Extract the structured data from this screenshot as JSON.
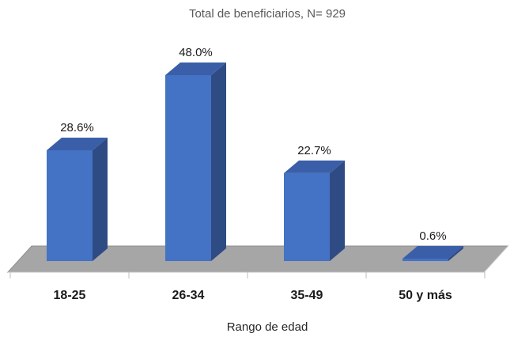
{
  "chart_data": {
    "type": "bar",
    "title": "Total de beneficiarios, N= 929",
    "xlabel": "Rango de edad",
    "ylabel": "",
    "categories": [
      "18-25",
      "26-34",
      "35-49",
      "50 y más"
    ],
    "values": [
      28.6,
      48.0,
      22.7,
      0.6
    ],
    "value_labels": [
      "28.6%",
      "48.0%",
      "22.7%",
      "0.6%"
    ],
    "ylim": [
      0,
      50
    ],
    "grid": false,
    "legend": "none",
    "style": "3d-column"
  },
  "colors": {
    "bar_front": "#4472C4",
    "bar_side": "#2F4B84",
    "bar_top": "#3A5FA8",
    "floor": "#A6A6A6",
    "floor_edge": "#8C8C8C"
  }
}
